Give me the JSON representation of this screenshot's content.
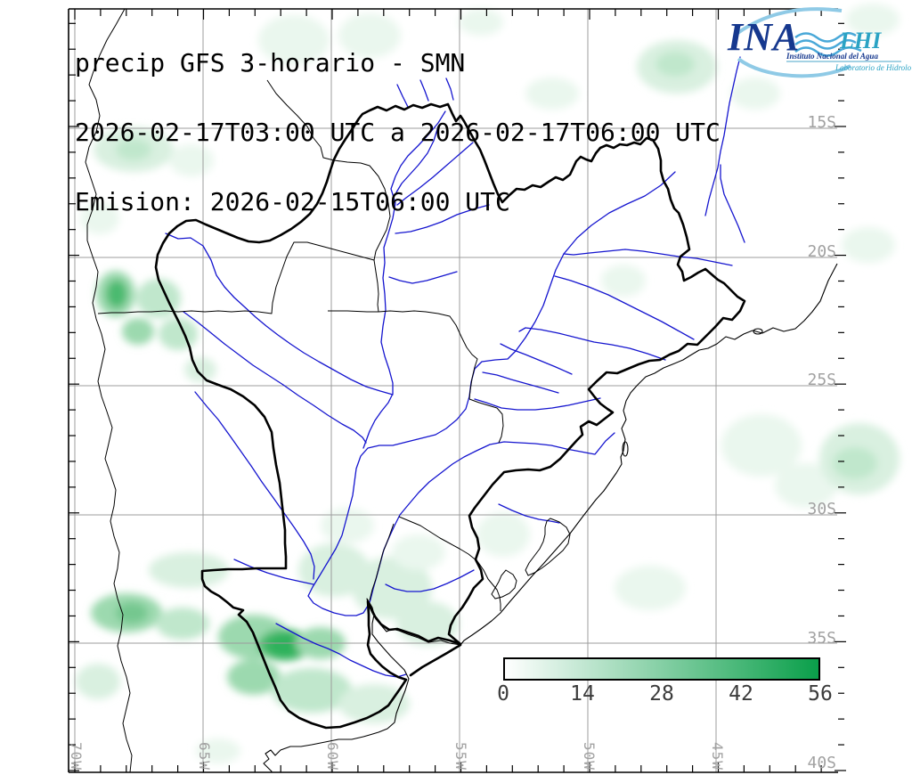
{
  "header": {
    "line1": "precip GFS 3-horario - SMN",
    "line2": "2026-02-17T03:00 UTC a 2026-02-17T06:00 UTC",
    "line3": "Emision: 2026-02-15T06:00 UTC"
  },
  "logo": {
    "acronym": "INA",
    "org_name": "Instituto Nacional del Agua",
    "lab_acronym": "LHI",
    "lab_name": "Laboratorio de Hidrología",
    "colors": {
      "primary": "#16388e",
      "accent": "#2ba3c4",
      "wave": "#49a8d8",
      "arc": "#8fcae6"
    }
  },
  "axes": {
    "lat_labels": [
      "15S",
      "20S",
      "25S",
      "30S",
      "35S",
      "40S"
    ],
    "lon_labels": [
      "70W",
      "65W",
      "60W",
      "55W",
      "50W",
      "45W"
    ]
  },
  "colorbar": {
    "labels": [
      "0",
      "14",
      "28",
      "42",
      "56"
    ],
    "min_color": "#ffffff",
    "max_color": "#0a9f4a"
  },
  "map_style": {
    "grid_color": "#9c9c9c",
    "river_color": "#1515cf",
    "border_color": "#000000",
    "basin_outline_color": "#000000"
  }
}
